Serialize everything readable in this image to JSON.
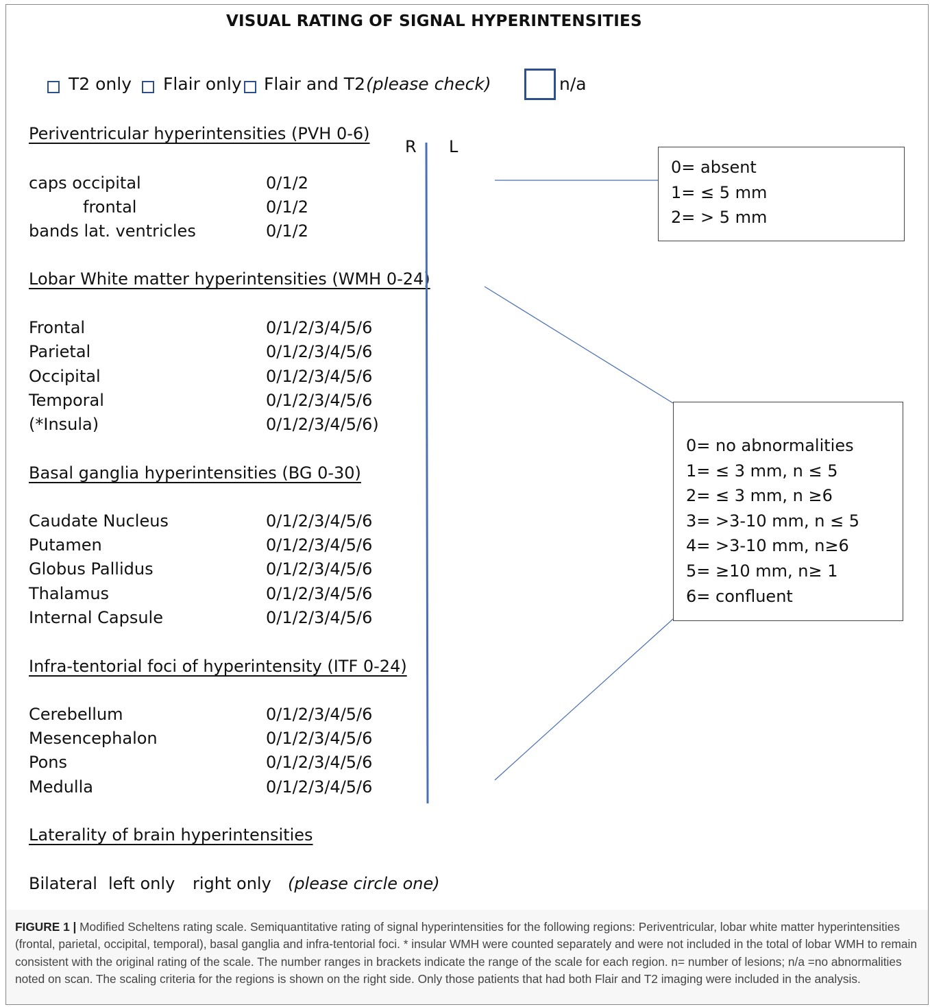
{
  "title": "VISUAL RATING OF SIGNAL HYPERINTENSITIES",
  "checkboxes": {
    "t2_only": "T2 only",
    "flair_only": "Flair only",
    "flair_and_t2": "Flair and T2",
    "please_check": "(please check)",
    "na": "n/a"
  },
  "side_labels": {
    "right": "R",
    "left": "L"
  },
  "pvh": {
    "heading": "Periventricular hyperintensities (PVH 0-6)",
    "rows": [
      {
        "label": "caps occipital",
        "value": "0/1/2"
      },
      {
        "label": "frontal",
        "value": "0/1/2"
      },
      {
        "label": "bands lat. ventricles",
        "value": "0/1/2"
      }
    ]
  },
  "wmh": {
    "heading": "Lobar White matter hyperintensities (WMH 0-24)",
    "rows": [
      {
        "label": "Frontal",
        "value": "0/1/2/3/4/5/6"
      },
      {
        "label": "Parietal",
        "value": "0/1/2/3/4/5/6"
      },
      {
        "label": "Occipital",
        "value": "0/1/2/3/4/5/6"
      },
      {
        "label": "Temporal",
        "value": "0/1/2/3/4/5/6"
      },
      {
        "label": "(*Insula)",
        "value": "0/1/2/3/4/5/6)"
      }
    ]
  },
  "bg": {
    "heading": "Basal ganglia hyperintensities (BG 0-30)",
    "rows": [
      {
        "label": "Caudate Nucleus",
        "value": "0/1/2/3/4/5/6"
      },
      {
        "label": "Putamen",
        "value": "0/1/2/3/4/5/6"
      },
      {
        "label": "Globus Pallidus",
        "value": "0/1/2/3/4/5/6"
      },
      {
        "label": "Thalamus",
        "value": "0/1/2/3/4/5/6"
      },
      {
        "label": "Internal Capsule",
        "value": "0/1/2/3/4/5/6"
      }
    ]
  },
  "itf": {
    "heading": "Infra-tentorial foci of hyperintensity (ITF 0-24)",
    "rows": [
      {
        "label": "Cerebellum",
        "value": "0/1/2/3/4/5/6"
      },
      {
        "label": "Mesencephalon",
        "value": "0/1/2/3/4/5/6"
      },
      {
        "label": "Pons",
        "value": "0/1/2/3/4/5/6"
      },
      {
        "label": "Medulla",
        "value": "0/1/2/3/4/5/6"
      }
    ]
  },
  "laterality": {
    "heading": "Laterality of brain hyperintensities",
    "options": [
      "Bilateral",
      "left only",
      "right only"
    ],
    "note": "(please circle one)"
  },
  "legend_pvh": [
    "0= absent",
    "1= ≤ 5 mm",
    "2= > 5 mm"
  ],
  "legend_wmh": [
    "0= no abnormalities",
    "1= ≤ 3 mm, n ≤ 5",
    "2= ≤ 3 mm, n ≥6",
    "3= >3-10 mm, n ≤ 5",
    "4= >3-10 mm, n≥6",
    "5= ≥10 mm, n≥ 1",
    "6= confluent"
  ],
  "caption": {
    "label": "FIGURE 1 |",
    "text": "Modified Scheltens rating scale. Semiquantitative rating of signal hyperintensities for the following regions: Periventricular, lobar white matter hyperintensities (frontal, parietal, occipital, temporal), basal ganglia and infra-tentorial foci. * insular WMH were counted separately and were not included in the total of lobar WMH to remain consistent with the original rating of the scale. The number ranges in brackets indicate the range of the scale for each region. n= number of lesions; n/a =no abnormalities noted on scan. The scaling criteria for the regions is shown on the right side. Only those patients that had both Flair and T2 imaging were included in the analysis."
  },
  "colors": {
    "line_blue": "#4a6fb5",
    "checkbox_blue": "#2e4f8e"
  }
}
